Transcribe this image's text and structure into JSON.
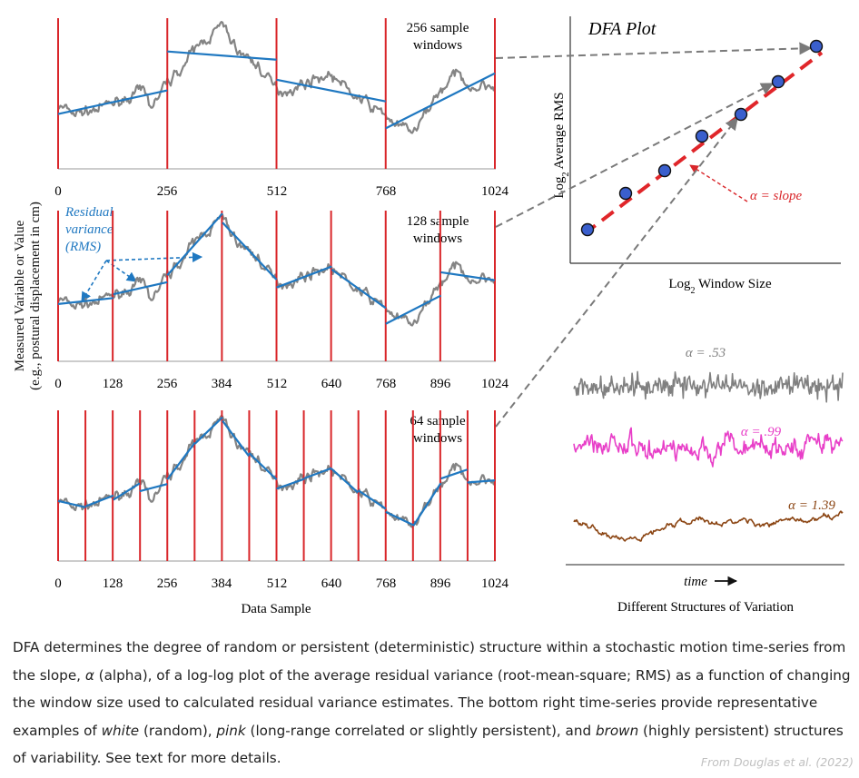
{
  "left_panels": {
    "y_axis_label_line1": "Measured Variable or Value",
    "y_axis_label_line2": "(e.g., postural displacement in cm)",
    "x_axis_label": "Data Sample",
    "panels": [
      {
        "window_label_line1": "256 sample",
        "window_label_line2": "windows",
        "ticks": [
          "0",
          "256",
          "512",
          "768",
          "1024"
        ]
      },
      {
        "window_label_line1": "128 sample",
        "window_label_line2": "windows",
        "ticks": [
          "0",
          "128",
          "256",
          "384",
          "512",
          "640",
          "768",
          "896",
          "1024"
        ]
      },
      {
        "window_label_line1": "64 sample",
        "window_label_line2": "windows",
        "ticks": [
          "0",
          "128",
          "256",
          "384",
          "512",
          "640",
          "768",
          "896",
          "1024"
        ]
      }
    ],
    "residual_annotation": [
      "Residual",
      "variance",
      "(RMS)"
    ]
  },
  "dfa_plot": {
    "title": "DFA Plot",
    "y_label_sub": "2",
    "y_label_prefix": "Log",
    "y_label_rest": " Average RMS",
    "x_label_prefix": "Log",
    "x_label_sub": "2",
    "x_label_rest": " Window Size",
    "slope_label": "α = slope"
  },
  "structures": {
    "series": [
      {
        "label": "α = .53"
      },
      {
        "label": "α = .99"
      },
      {
        "label": "α = 1.39"
      }
    ],
    "time_label": "time",
    "title": "Different Structures of Variation"
  },
  "colors": {
    "signal": "#848484",
    "fit": "#1f78c1",
    "window_line": "#d9262a",
    "white_noise": "#808080",
    "pink_noise": "#e83fc8",
    "brown_noise": "#8b4513",
    "dfa_dash": "#e0262a",
    "dfa_point": "#3a5fcd",
    "annotation_blue": "#1f78c1"
  },
  "caption": {
    "part1": "DFA determines the degree of random or persistent (deterministic) structure within a stochastic motion time-series from the slope, ",
    "alpha": "α",
    "part2": " (alpha), of a log-log plot of the average residual variance (root-mean-square; RMS) as a function of changing the window size used to calculated residual variance estimates. The bottom right time-series provide representative examples of ",
    "white": "white",
    "part3": " (random), ",
    "pink": "pink",
    "part4": " (long-range correlated or slightly persistent), and ",
    "brown": "brown",
    "part5": " (highly persistent) structures of variability. See text for more details."
  },
  "source": "From Douglas et al. (2022)"
}
